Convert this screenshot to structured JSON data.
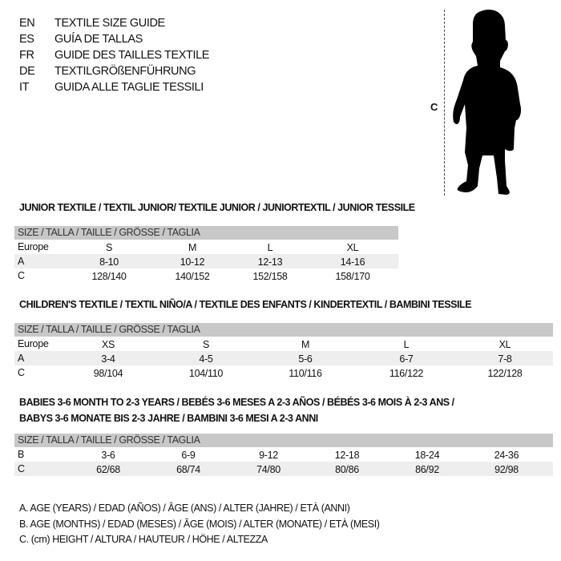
{
  "title_block": [
    {
      "code": "EN",
      "text": "TEXTILE SIZE GUIDE"
    },
    {
      "code": "ES",
      "text": "GUÍA DE TALLAS"
    },
    {
      "code": "FR",
      "text": "GUIDE DES TAILLES TEXTILE"
    },
    {
      "code": "DE",
      "text": "TEXTILGRÖßENFÜHRUNG"
    },
    {
      "code": "IT",
      "text": "GUIDA ALLE TAGLIE TESSILI"
    }
  ],
  "figure": {
    "measure_label": "C",
    "icon": "child-silhouette-icon"
  },
  "colors": {
    "header_bar": "#c8c8c8",
    "shaded_row": "#eeeeee",
    "text": "#111111"
  },
  "junior": {
    "heading": "JUNIOR TEXTILE / TEXTIL JUNIOR/ TEXTILE JUNIOR / JUNIORTEXTIL / JUNIOR TESSILE",
    "header": "SIZE / TALLA / TAILLE / GRÖSSE / TAGLIA",
    "rows": [
      {
        "label": "Europe",
        "values": [
          "S",
          "M",
          "L",
          "XL"
        ]
      },
      {
        "label": "A",
        "values": [
          "8-10",
          "10-12",
          "12-13",
          "14-16"
        ]
      },
      {
        "label": "C",
        "values": [
          "128/140",
          "140/152",
          "152/158",
          "158/170"
        ]
      }
    ]
  },
  "children": {
    "heading": "CHILDREN'S TEXTILE / TEXTIL NIÑO/A / TEXTILE DES ENFANTS / KINDERTEXTIL / BAMBINI TESSILE",
    "header": "SIZE / TALLA / TAILLE / GRÖSSE / TAGLIA",
    "rows": [
      {
        "label": "Europe",
        "values": [
          "XS",
          "S",
          "M",
          "L",
          "XL"
        ]
      },
      {
        "label": "A",
        "values": [
          "3-4",
          "4-5",
          "5-6",
          "6-7",
          "7-8"
        ]
      },
      {
        "label": "C",
        "values": [
          "98/104",
          "104/110",
          "110/116",
          "116/122",
          "122/128"
        ]
      }
    ]
  },
  "babies": {
    "heading_line1": "BABIES 3-6 MONTH TO 2-3 YEARS / BEBÉS 3-6 MESES A 2-3 AÑOS / BÉBÉS 3-6 MOIS À 2-3 ANS /",
    "heading_line2": "BABYS 3-6 MONATE BIS 2-3 JAHRE / BAMBINI 3-6 MESI A 2-3 ANNI",
    "header": "SIZE / TALLA / TAILLE / GRÖSSE / TAGLIA",
    "rows": [
      {
        "label": "B",
        "values": [
          "3-6",
          "6-9",
          "9-12",
          "12-18",
          "18-24",
          "24-36"
        ]
      },
      {
        "label": "C",
        "values": [
          "62/68",
          "68/74",
          "74/80",
          "80/86",
          "86/92",
          "92/98"
        ]
      }
    ]
  },
  "legend": [
    "A. AGE (YEARS) / EDAD (AÑOS) / ÂGE (ANS) / ALTER (JAHRE) / ETÀ (ANNI)",
    "B. AGE (MONTHS) / EDAD (MESES) / ÂGE (MOIS) / ALTER (MONATE) / ETÀ (MESI)",
    "C. (cm) HEIGHT / ALTURA / HAUTEUR / HÖHE / ALTEZZA"
  ]
}
